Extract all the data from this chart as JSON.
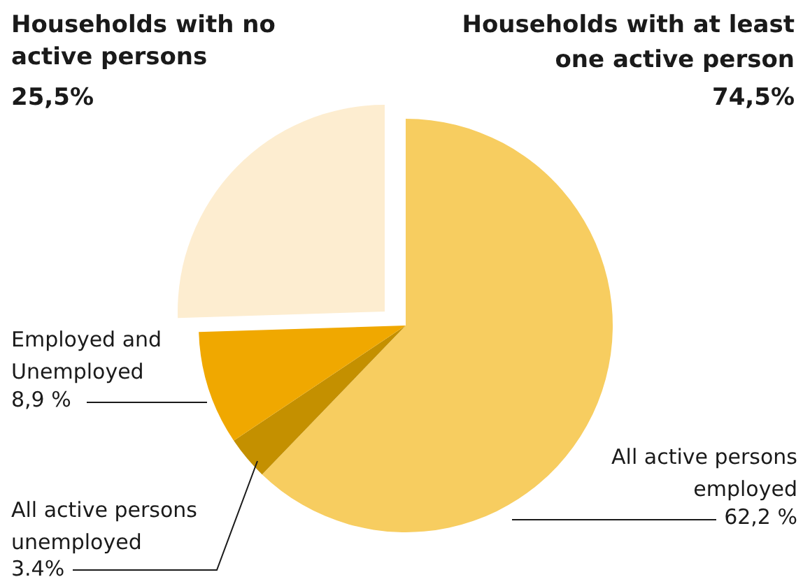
{
  "chart_data": {
    "type": "pie",
    "categories": [
      "All active persons employed",
      "All active persons unemployed",
      "Employed and Unemployed",
      "Households with no active persons"
    ],
    "values": [
      62.2,
      3.4,
      8.9,
      25.5
    ],
    "colors": [
      "#f7cd60",
      "#c49000",
      "#f0a800",
      "#fdedd0"
    ],
    "value_labels": [
      "62,2 %",
      "3.4%",
      "8,9 %",
      "25,5%"
    ],
    "annotations": [
      "Households with at least one active person",
      "74,5%"
    ]
  }
}
